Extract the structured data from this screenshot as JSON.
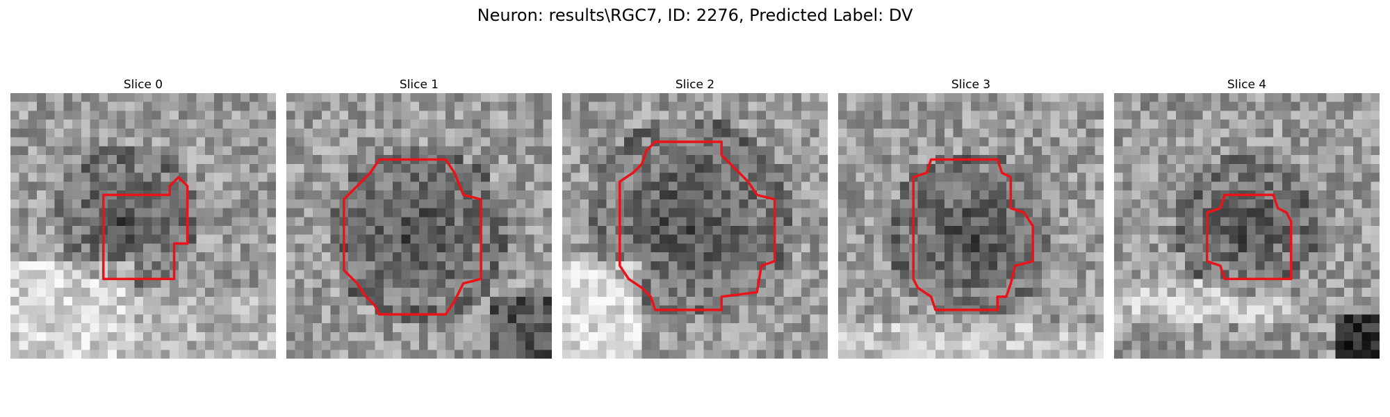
{
  "figure": {
    "title": "Neuron: results\\RGC7, ID: 2276, Predicted Label: DV"
  },
  "contour_color": "#e8141a",
  "grid_size": 30,
  "slices": [
    {
      "label": "Slice 0",
      "seed": 11,
      "dark_center": [
        13,
        14
      ],
      "dark_radius": 6.5,
      "band": "lower-left-light",
      "contour": [
        [
          10.5,
          11.5
        ],
        [
          18,
          11.5
        ],
        [
          18,
          10.5
        ],
        [
          19,
          9.5
        ],
        [
          20,
          10.5
        ],
        [
          20,
          17
        ],
        [
          18.5,
          17
        ],
        [
          18.5,
          21
        ],
        [
          10.5,
          21
        ]
      ]
    },
    {
      "label": "Slice 1",
      "seed": 23,
      "dark_center": [
        15,
        16
      ],
      "dark_radius": 8.5,
      "band": "bottom-right-dark",
      "contour": [
        [
          10.5,
          7.5
        ],
        [
          18,
          7.5
        ],
        [
          19,
          9
        ],
        [
          20,
          11.5
        ],
        [
          22,
          12
        ],
        [
          22,
          21
        ],
        [
          20,
          21.5
        ],
        [
          19,
          23.5
        ],
        [
          18,
          25
        ],
        [
          10.5,
          25
        ],
        [
          10,
          24
        ],
        [
          9,
          23
        ],
        [
          8,
          21.5
        ],
        [
          6.5,
          20
        ],
        [
          6.5,
          12
        ],
        [
          7.5,
          11
        ],
        [
          8.5,
          10
        ],
        [
          9.5,
          9
        ]
      ]
    },
    {
      "label": "Slice 2",
      "seed": 37,
      "dark_center": [
        14.5,
        14
      ],
      "dark_radius": 10,
      "band": "lower-left-light-diagonal",
      "contour": [
        [
          10.5,
          5.5
        ],
        [
          18,
          5.5
        ],
        [
          18,
          7
        ],
        [
          19.5,
          8.5
        ],
        [
          21,
          10
        ],
        [
          22,
          11.5
        ],
        [
          24,
          12
        ],
        [
          24,
          19
        ],
        [
          22.5,
          19.5
        ],
        [
          22,
          22.5
        ],
        [
          18,
          23
        ],
        [
          18,
          24.5
        ],
        [
          10.5,
          24.5
        ],
        [
          10,
          23
        ],
        [
          9,
          22
        ],
        [
          7.5,
          21
        ],
        [
          6.5,
          19.5
        ],
        [
          6.5,
          10
        ],
        [
          8,
          9
        ],
        [
          9,
          8
        ],
        [
          9.5,
          6.5
        ]
      ]
    },
    {
      "label": "Slice 3",
      "seed": 51,
      "dark_center": [
        15,
        16
      ],
      "dark_radius": 8,
      "band": "lower-bottom-light",
      "contour": [
        [
          10.5,
          7.5
        ],
        [
          18,
          7.5
        ],
        [
          18.5,
          9
        ],
        [
          19.5,
          9.5
        ],
        [
          19.5,
          13
        ],
        [
          21,
          13.5
        ],
        [
          22,
          15
        ],
        [
          22,
          19
        ],
        [
          20,
          19.5
        ],
        [
          19.5,
          21.5
        ],
        [
          19,
          23
        ],
        [
          18,
          23
        ],
        [
          18,
          24.5
        ],
        [
          11,
          24.5
        ],
        [
          10.5,
          23
        ],
        [
          9,
          22
        ],
        [
          8.5,
          21
        ],
        [
          8.5,
          9.5
        ],
        [
          10,
          9
        ]
      ]
    },
    {
      "label": "Slice 4",
      "seed": 67,
      "dark_center": [
        15,
        15
      ],
      "dark_radius": 6.5,
      "band": "bottom-right-dark-corner",
      "contour": [
        [
          12.5,
          11.5
        ],
        [
          18,
          11.5
        ],
        [
          18.5,
          13
        ],
        [
          19.5,
          13.5
        ],
        [
          20,
          14.5
        ],
        [
          20,
          21
        ],
        [
          12.5,
          21
        ],
        [
          12,
          19.5
        ],
        [
          10.5,
          19
        ],
        [
          10.5,
          13.5
        ],
        [
          12,
          13
        ]
      ]
    }
  ]
}
